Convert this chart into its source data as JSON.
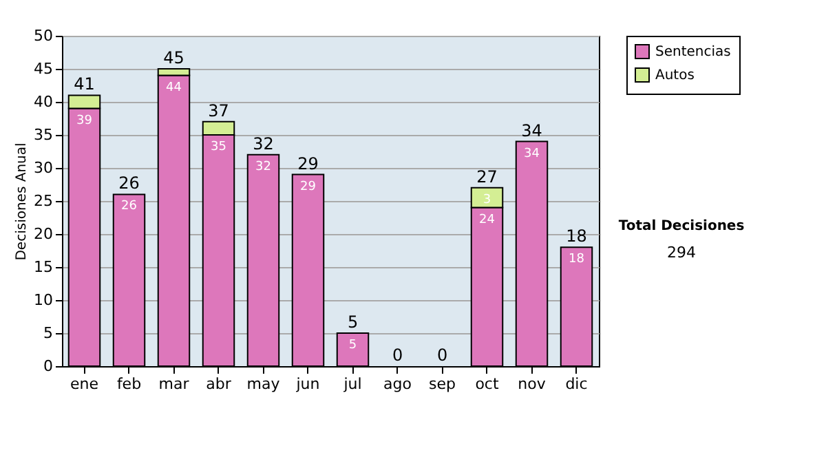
{
  "chart_data": {
    "type": "bar",
    "stacked": true,
    "ylabel": "Decisiones Anual",
    "categories": [
      "ene",
      "feb",
      "mar",
      "abr",
      "may",
      "jun",
      "jul",
      "ago",
      "sep",
      "oct",
      "nov",
      "dic"
    ],
    "series": [
      {
        "name": "Sentencias",
        "color": "#dd77bb",
        "values": [
          39,
          26,
          44,
          35,
          32,
          29,
          5,
          0,
          0,
          24,
          34,
          18
        ],
        "value_labels": [
          "39",
          "26",
          "44",
          "35",
          "32",
          "29",
          "5",
          null,
          null,
          "24",
          "34",
          "18"
        ]
      },
      {
        "name": "Autos",
        "color": "#d4ee94",
        "values": [
          2,
          0,
          1,
          2,
          0,
          0,
          0,
          0,
          0,
          3,
          0,
          0
        ],
        "value_labels": [
          null,
          null,
          null,
          null,
          null,
          null,
          null,
          null,
          null,
          "3",
          null,
          null
        ]
      }
    ],
    "totals": [
      "41",
      "26",
      "45",
      "37",
      "32",
      "29",
      "5",
      "0",
      "0",
      "27",
      "34",
      "18"
    ],
    "ylim": [
      0,
      50
    ],
    "yticks": [
      0,
      5,
      10,
      15,
      20,
      25,
      30,
      35,
      40,
      45,
      50
    ],
    "grid": "y",
    "legend": "right",
    "annotations": [
      "Total Decisiones",
      "294"
    ]
  }
}
